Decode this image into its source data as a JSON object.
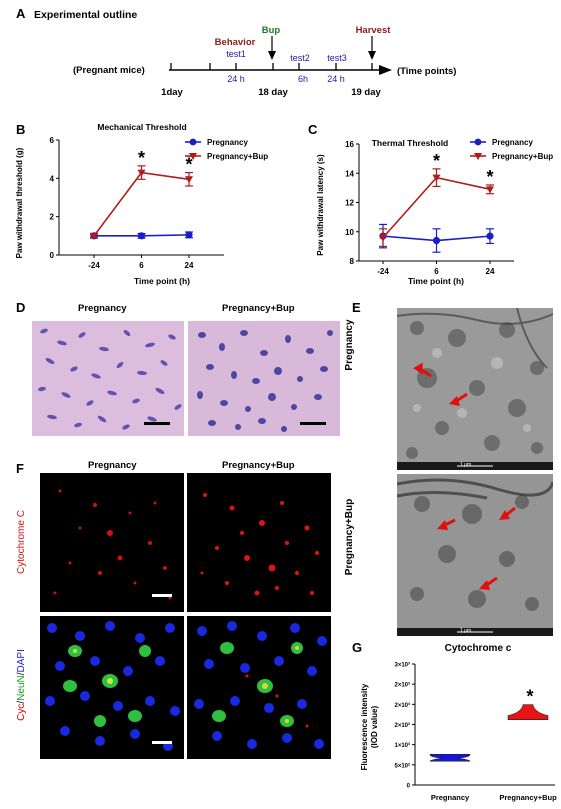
{
  "panelA": {
    "letter": "A",
    "heading": "Experimental outline",
    "timeline": {
      "left_label": "(Pregnant mice)",
      "right_label": "(Time points)",
      "day_labels": [
        "1day",
        "18 day",
        "19 day"
      ],
      "interval_labels": [
        "24 h",
        "6h",
        "24 h"
      ],
      "test_labels": [
        "test1",
        "test2",
        "test3"
      ],
      "behavior_label": "Behavior",
      "bup_label": "Bup",
      "harvest_label": "Harvest",
      "colors": {
        "behavior": "#8b1a1a",
        "bup": "#1f7a1f",
        "harvest": "#8b1a1a",
        "test": "#1a1aa6"
      }
    }
  },
  "panelB": {
    "letter": "B",
    "ylabel": "Paw withdrawal threshold (g)",
    "xlabel": "Time point (h)",
    "legend": [
      "Pregnancy",
      "Pregnancy+Bup"
    ]
  },
  "panelC": {
    "letter": "C",
    "ylabel": "Paw withdrawal latency (s)",
    "xlabel": "Time point (h)",
    "legend": [
      "Pregnancy",
      "Pregnancy+Bup"
    ]
  },
  "panelD": {
    "letter": "D",
    "labels": [
      "Pregnancy",
      "Pregnancy+Bup"
    ]
  },
  "panelE": {
    "letter": "E",
    "labels": [
      "Pregnancy",
      "Pregnancy+Bup"
    ],
    "scale_text": "1 μm"
  },
  "panelF": {
    "letter": "F",
    "col_labels": [
      "Pregnancy",
      "Pregnancy+Bup"
    ],
    "row1_label": "Cytochrome C",
    "row2_label_parts": [
      "Cyc",
      "/",
      "NeuN",
      "/",
      "DAPI"
    ],
    "row2_colors": [
      "#e00000",
      "#000000",
      "#1c9a1c",
      "#000000",
      "#1a1ad0"
    ]
  },
  "panelG": {
    "letter": "G",
    "ylabel": [
      "Fluorescence intensity",
      "(IOD value)"
    ]
  },
  "chart_data": [
    {
      "type": "line",
      "title": "Mechanical Threshold",
      "xlabel": "Time point (h)",
      "ylabel": "Paw withdrawal threshold (g)",
      "categories": [
        "-24",
        "6",
        "24"
      ],
      "ylim": [
        0,
        6
      ],
      "yticks": [
        0,
        2,
        4,
        6
      ],
      "legend_position": "top-right",
      "series": [
        {
          "name": "Pregnancy",
          "values": [
            1.0,
            1.0,
            1.05
          ],
          "errors": [
            0.12,
            0.12,
            0.15
          ],
          "color": "#1c1cc8",
          "marker": "circle"
        },
        {
          "name": "Pregnancy+Bup",
          "values": [
            1.0,
            4.3,
            3.95
          ],
          "errors": [
            0.1,
            0.35,
            0.35
          ],
          "color": "#b01c1c",
          "marker": "triangle-down"
        }
      ],
      "annotations": [
        {
          "category": "6",
          "text": "*"
        },
        {
          "category": "24",
          "text": "*"
        }
      ]
    },
    {
      "type": "line",
      "title": "Thermal Threshold",
      "xlabel": "Time point (h)",
      "ylabel": "Paw withdrawal latency (s)",
      "categories": [
        "-24",
        "6",
        "24"
      ],
      "ylim": [
        8,
        16
      ],
      "yticks": [
        8,
        10,
        12,
        14,
        16
      ],
      "legend_position": "top-right",
      "series": [
        {
          "name": "Pregnancy",
          "values": [
            9.7,
            9.4,
            9.7
          ],
          "errors": [
            0.8,
            0.8,
            0.5
          ],
          "color": "#1c1cc8",
          "marker": "circle"
        },
        {
          "name": "Pregnancy+Bup",
          "values": [
            9.6,
            13.7,
            12.9
          ],
          "errors": [
            0.6,
            0.6,
            0.3
          ],
          "color": "#b01c1c",
          "marker": "triangle-down"
        }
      ],
      "annotations": [
        {
          "category": "6",
          "text": "*"
        },
        {
          "category": "24",
          "text": "*"
        }
      ]
    },
    {
      "type": "violin",
      "title": "Cytochrome c",
      "ylabel": "Fluorescence intensity (IOD value)",
      "categories": [
        "Pregnancy",
        "Pregnancy+Bup"
      ],
      "ylim": [
        0,
        3000
      ],
      "ytick_labels": [
        "0",
        "5×10²",
        "1×10³",
        "2×10³",
        "2×10³",
        "2×10³",
        "3×10³"
      ],
      "series": [
        {
          "name": "Pregnancy",
          "min": 590,
          "max": 760,
          "color": "#1414e6"
        },
        {
          "name": "Pregnancy+Bup",
          "min": 1620,
          "max": 1990,
          "color": "#e61414"
        }
      ],
      "annotations": [
        {
          "category": "Pregnancy+Bup",
          "text": "*"
        }
      ]
    }
  ]
}
